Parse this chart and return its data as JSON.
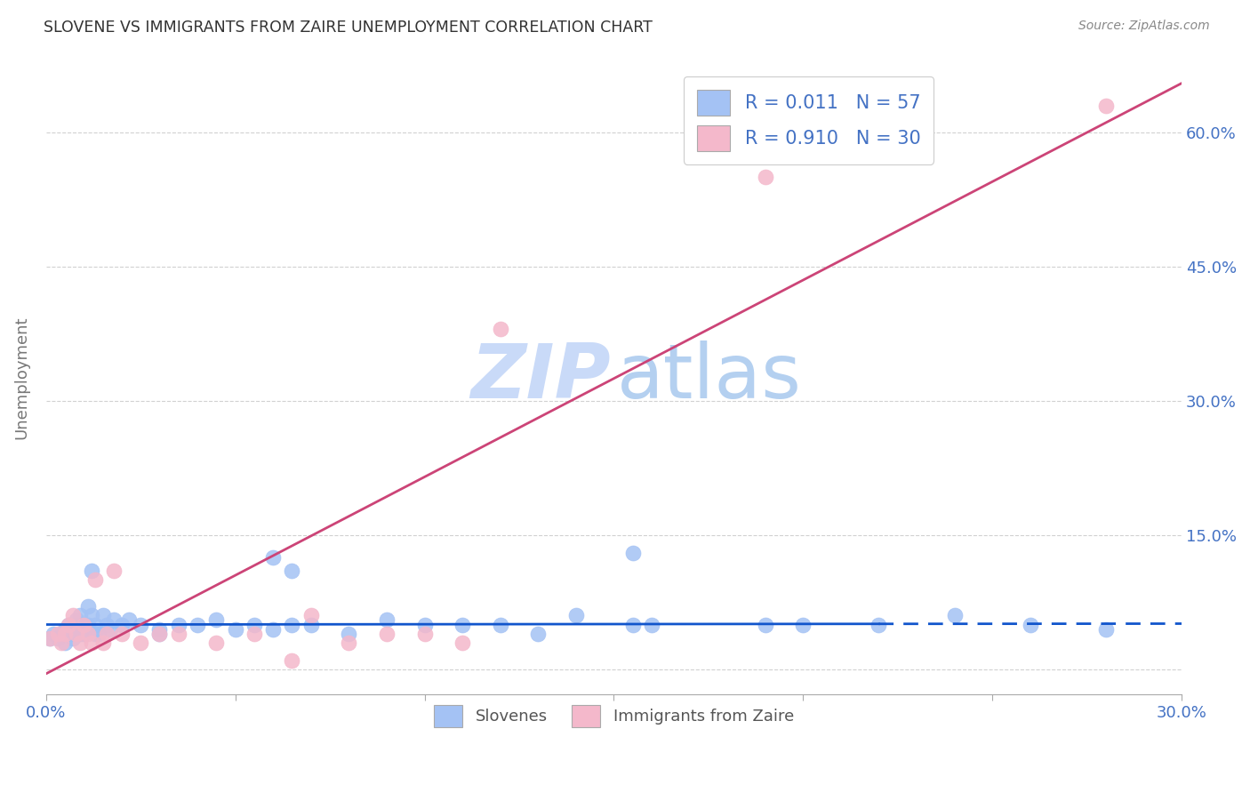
{
  "title": "SLOVENE VS IMMIGRANTS FROM ZAIRE UNEMPLOYMENT CORRELATION CHART",
  "source": "Source: ZipAtlas.com",
  "ylabel": "Unemployment",
  "x_min": 0.0,
  "x_max": 0.3,
  "y_min": -0.028,
  "y_max": 0.68,
  "slovene_color": "#a4c2f4",
  "zaire_color": "#f4b8cb",
  "slovene_line_color": "#1155cc",
  "zaire_line_color": "#cc4477",
  "background_color": "#ffffff",
  "grid_color": "#cccccc",
  "watermark_zip_color": "#c9daf8",
  "watermark_atlas_color": "#b4d0f0",
  "tick_color": "#4472c4",
  "title_color": "#333333",
  "source_color": "#888888",
  "legend_text_color": "#4472c4",
  "slovene_x": [
    0.001,
    0.002,
    0.003,
    0.004,
    0.005,
    0.005,
    0.006,
    0.007,
    0.007,
    0.008,
    0.008,
    0.009,
    0.009,
    0.01,
    0.01,
    0.011,
    0.011,
    0.012,
    0.012,
    0.013,
    0.013,
    0.014,
    0.015,
    0.016,
    0.017,
    0.018,
    0.02,
    0.022,
    0.025,
    0.03,
    0.035,
    0.04,
    0.045,
    0.05,
    0.055,
    0.06,
    0.065,
    0.07,
    0.08,
    0.09,
    0.1,
    0.11,
    0.12,
    0.13,
    0.14,
    0.155,
    0.16,
    0.19,
    0.2,
    0.22,
    0.24,
    0.26,
    0.28,
    0.03,
    0.06,
    0.155,
    0.065
  ],
  "slovene_y": [
    0.035,
    0.04,
    0.035,
    0.04,
    0.045,
    0.03,
    0.05,
    0.04,
    0.035,
    0.05,
    0.055,
    0.04,
    0.06,
    0.05,
    0.04,
    0.07,
    0.05,
    0.06,
    0.11,
    0.05,
    0.04,
    0.04,
    0.06,
    0.05,
    0.045,
    0.055,
    0.05,
    0.055,
    0.05,
    0.045,
    0.05,
    0.05,
    0.055,
    0.045,
    0.05,
    0.045,
    0.05,
    0.05,
    0.04,
    0.055,
    0.05,
    0.05,
    0.05,
    0.04,
    0.06,
    0.13,
    0.05,
    0.05,
    0.05,
    0.05,
    0.06,
    0.05,
    0.045,
    0.04,
    0.125,
    0.05,
    0.11
  ],
  "zaire_x": [
    0.001,
    0.003,
    0.004,
    0.005,
    0.006,
    0.007,
    0.008,
    0.009,
    0.01,
    0.011,
    0.012,
    0.013,
    0.015,
    0.016,
    0.018,
    0.02,
    0.025,
    0.03,
    0.035,
    0.045,
    0.055,
    0.065,
    0.07,
    0.08,
    0.09,
    0.1,
    0.11,
    0.12,
    0.19,
    0.28
  ],
  "zaire_y": [
    0.035,
    0.04,
    0.03,
    0.04,
    0.05,
    0.06,
    0.04,
    0.03,
    0.05,
    0.04,
    0.03,
    0.1,
    0.03,
    0.04,
    0.11,
    0.04,
    0.03,
    0.04,
    0.04,
    0.03,
    0.04,
    0.01,
    0.06,
    0.03,
    0.04,
    0.04,
    0.03,
    0.38,
    0.55,
    0.63
  ],
  "slovene_trend_x": [
    0.0,
    0.3
  ],
  "slovene_trend_y": [
    0.05,
    0.051
  ],
  "zaire_trend_x": [
    0.0,
    0.3
  ],
  "zaire_trend_y": [
    -0.005,
    0.655
  ],
  "x_ticks": [
    0.0,
    0.05,
    0.1,
    0.15,
    0.2,
    0.25,
    0.3
  ],
  "y_ticks": [
    0.0,
    0.15,
    0.3,
    0.45,
    0.6
  ],
  "y_tick_labels": [
    "",
    "15.0%",
    "30.0%",
    "45.0%",
    "60.0%"
  ]
}
